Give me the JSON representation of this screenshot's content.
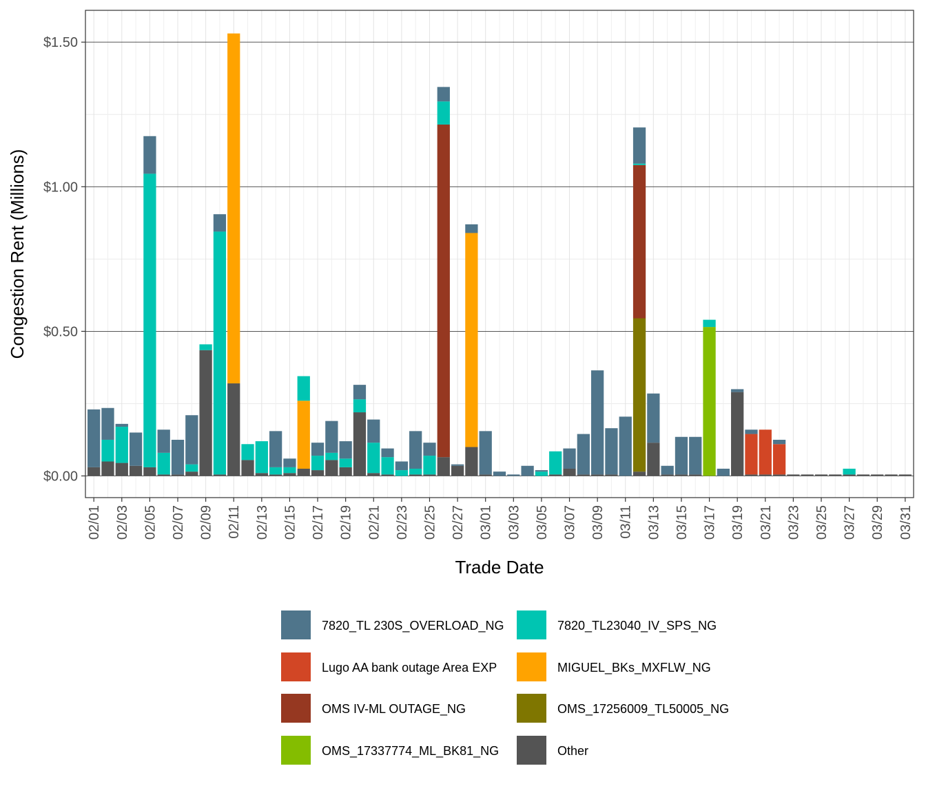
{
  "chart_data": {
    "type": "bar",
    "stacked": true,
    "xlabel": "Trade Date",
    "ylabel": "Congestion Rent (Millions)",
    "ylim": [
      -0.075,
      1.61
    ],
    "y_ticks": [
      0,
      0.5,
      1.0,
      1.5
    ],
    "y_tick_labels": [
      "$0.00",
      "$0.50",
      "$1.00",
      "$1.50"
    ],
    "grid": true,
    "legend_position": "bottom",
    "categories": [
      "02/01",
      "02/02",
      "02/03",
      "02/04",
      "02/05",
      "02/06",
      "02/07",
      "02/08",
      "02/09",
      "02/10",
      "02/11",
      "02/12",
      "02/13",
      "02/14",
      "02/15",
      "02/16",
      "02/17",
      "02/18",
      "02/19",
      "02/20",
      "02/21",
      "02/22",
      "02/23",
      "02/24",
      "02/25",
      "02/26",
      "02/27",
      "02/28",
      "03/01",
      "03/02",
      "03/03",
      "03/04",
      "03/05",
      "03/06",
      "03/07",
      "03/08",
      "03/09",
      "03/10",
      "03/11",
      "03/12",
      "03/13",
      "03/14",
      "03/15",
      "03/16",
      "03/17",
      "03/18",
      "03/19",
      "03/20",
      "03/21",
      "03/22",
      "03/23",
      "03/24",
      "03/25",
      "03/26",
      "03/27",
      "03/28",
      "03/29",
      "03/30",
      "03/31"
    ],
    "x_tick_labels": [
      "02/01",
      "02/03",
      "02/05",
      "02/07",
      "02/09",
      "02/11",
      "02/13",
      "02/15",
      "02/17",
      "02/19",
      "02/21",
      "02/23",
      "02/25",
      "02/27",
      "03/01",
      "03/03",
      "03/05",
      "03/07",
      "03/09",
      "03/11",
      "03/13",
      "03/15",
      "03/17",
      "03/19",
      "03/21",
      "03/23",
      "03/25",
      "03/27",
      "03/29",
      "03/31"
    ],
    "stack_order": [
      "Other",
      "OMS_17337774_ML_BK81_NG",
      "OMS_17256009_TL50005_NG",
      "OMS IV-ML OUTAGE_NG",
      "MIGUEL_BKs_MXFLW_NG",
      "Lugo AA bank outage  Area EXP",
      "7820_TL23040_IV_SPS_NG",
      "7820_TL 230S_OVERLOAD_NG"
    ],
    "series": [
      {
        "name": "7820_TL 230S_OVERLOAD_NG",
        "color": "#4F758B",
        "values": [
          0.2,
          0.11,
          0.01,
          0.115,
          0.13,
          0.08,
          0.12,
          0.17,
          0,
          0.06,
          0,
          0,
          0,
          0.125,
          0.03,
          0,
          0.045,
          0.11,
          0.06,
          0.05,
          0.08,
          0.03,
          0.03,
          0.13,
          0.045,
          0.05,
          0.005,
          0.03,
          0.15,
          0.015,
          0.005,
          0.035,
          0.005,
          0,
          0.07,
          0.14,
          0.36,
          0.16,
          0.205,
          0.125,
          0.17,
          0.03,
          0.13,
          0.13,
          0,
          0.025,
          0.01,
          0.015,
          0,
          0.015,
          0,
          0,
          0,
          0,
          0,
          0,
          0,
          0,
          0
        ]
      },
      {
        "name": "7820_TL23040_IV_SPS_NG",
        "color": "#00C5B2",
        "values": [
          0,
          0.075,
          0.125,
          0,
          1.015,
          0.075,
          0,
          0.025,
          0.02,
          0.84,
          0,
          0.055,
          0.11,
          0.025,
          0.02,
          0.085,
          0.05,
          0.025,
          0.03,
          0.045,
          0.105,
          0.06,
          0.02,
          0.02,
          0.065,
          0.08,
          0,
          0,
          0,
          0,
          0,
          0,
          0.015,
          0.08,
          0,
          0,
          0,
          0,
          0,
          0.005,
          0,
          0,
          0,
          0,
          0.025,
          0,
          0,
          0,
          0,
          0,
          0,
          0,
          0,
          0,
          0.02,
          0,
          0,
          0,
          0
        ]
      },
      {
        "name": "Lugo AA bank outage  Area EXP",
        "color": "#D24625",
        "values": [
          0,
          0,
          0,
          0,
          0,
          0,
          0,
          0,
          0,
          0,
          0,
          0,
          0,
          0,
          0,
          0,
          0,
          0,
          0,
          0,
          0,
          0,
          0,
          0,
          0,
          0,
          0,
          0,
          0,
          0,
          0,
          0,
          0,
          0,
          0,
          0,
          0,
          0,
          0,
          0,
          0,
          0,
          0,
          0,
          0,
          0,
          0,
          0.14,
          0.155,
          0.105,
          0,
          0,
          0,
          0,
          0,
          0,
          0,
          0,
          0
        ]
      },
      {
        "name": "MIGUEL_BKs_MXFLW_NG",
        "color": "#FFA300",
        "values": [
          0,
          0,
          0,
          0,
          0,
          0,
          0,
          0,
          0,
          0,
          1.21,
          0,
          0,
          0,
          0,
          0.235,
          0,
          0,
          0,
          0,
          0,
          0,
          0,
          0,
          0,
          0,
          0,
          0.74,
          0,
          0,
          0,
          0,
          0,
          0,
          0,
          0,
          0,
          0,
          0,
          0,
          0,
          0,
          0,
          0,
          0,
          0,
          0,
          0,
          0,
          0,
          0,
          0,
          0,
          0,
          0,
          0,
          0,
          0,
          0
        ]
      },
      {
        "name": "OMS IV-ML OUTAGE_NG",
        "color": "#963821",
        "values": [
          0,
          0,
          0,
          0,
          0,
          0,
          0,
          0,
          0,
          0,
          0,
          0,
          0,
          0,
          0,
          0,
          0,
          0,
          0,
          0,
          0,
          0,
          0,
          0,
          0,
          1.15,
          0,
          0,
          0,
          0,
          0,
          0,
          0,
          0,
          0,
          0,
          0,
          0,
          0,
          0.53,
          0,
          0,
          0,
          0,
          0,
          0,
          0,
          0,
          0,
          0,
          0,
          0,
          0,
          0,
          0,
          0,
          0,
          0,
          0
        ]
      },
      {
        "name": "OMS_17256009_TL50005_NG",
        "color": "#7F7600",
        "values": [
          0,
          0,
          0,
          0,
          0,
          0,
          0,
          0,
          0,
          0,
          0,
          0,
          0,
          0,
          0,
          0,
          0,
          0,
          0,
          0,
          0,
          0,
          0,
          0,
          0,
          0,
          0,
          0,
          0,
          0,
          0,
          0,
          0,
          0,
          0,
          0,
          0,
          0,
          0,
          0.53,
          0,
          0,
          0,
          0,
          0,
          0,
          0,
          0,
          0,
          0,
          0,
          0,
          0,
          0,
          0,
          0,
          0,
          0,
          0
        ]
      },
      {
        "name": "OMS_17337774_ML_BK81_NG",
        "color": "#84BD00",
        "values": [
          0,
          0,
          0,
          0,
          0,
          0,
          0,
          0,
          0,
          0,
          0,
          0,
          0,
          0,
          0,
          0,
          0,
          0,
          0,
          0,
          0,
          0,
          0,
          0,
          0,
          0,
          0,
          0,
          0,
          0,
          0,
          0,
          0,
          0,
          0,
          0,
          0,
          0,
          0,
          0,
          0,
          0,
          0,
          0,
          0.515,
          0,
          0,
          0,
          0,
          0,
          0,
          0,
          0,
          0,
          0,
          0,
          0,
          0,
          0
        ]
      },
      {
        "name": "Other",
        "color": "#545454",
        "values": [
          0.03,
          0.05,
          0.045,
          0.035,
          0.03,
          0.005,
          0.005,
          0.015,
          0.435,
          0.005,
          0.32,
          0.055,
          0.01,
          0.005,
          0.01,
          0.025,
          0.02,
          0.055,
          0.03,
          0.22,
          0.01,
          0.005,
          0,
          0.005,
          0.005,
          0.065,
          0.035,
          0.1,
          0.005,
          0,
          0,
          0,
          0,
          0.005,
          0.025,
          0.005,
          0.005,
          0.005,
          0,
          0.015,
          0.115,
          0.005,
          0.005,
          0.005,
          0,
          0,
          0.29,
          0.005,
          0.005,
          0.005,
          0.005,
          0.005,
          0.005,
          0.005,
          0.005,
          0.005,
          0.005,
          0.005,
          0.005
        ]
      }
    ]
  }
}
